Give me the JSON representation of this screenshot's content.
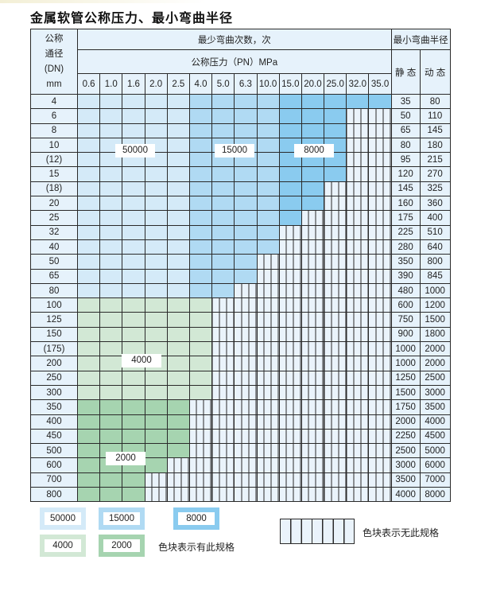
{
  "title": "金属软管公称压力、最小弯曲半径",
  "header": {
    "dn_label": [
      "公称",
      "通径",
      "(DN)",
      "mm"
    ],
    "cycles_label": "最少弯曲次数，次",
    "pressure_label": "公称压力（PN）MPa",
    "radius_label": "最小弯曲半径",
    "static_label": "静 态",
    "dynamic_label": "动 态",
    "pressures": [
      "0.6",
      "1.0",
      "1.6",
      "2.0",
      "2.5",
      "4.0",
      "5.0",
      "6.3",
      "10.0",
      "15.0",
      "20.0",
      "25.0",
      "32.0",
      "35.0"
    ]
  },
  "colors": {
    "50000": "#d4eaf8",
    "15000": "#b0daf3",
    "8000": "#8acbef",
    "4000": "#d2e8d5",
    "2000": "#a6d4b0",
    "border": "#2a2a2a",
    "header_bg": "#e6f2fb"
  },
  "rows": [
    {
      "dn": "4",
      "static": "35",
      "dynamic": "80",
      "cycles": [
        50000,
        50000,
        50000,
        50000,
        50000,
        15000,
        15000,
        15000,
        15000,
        8000,
        8000,
        8000,
        8000,
        8000
      ]
    },
    {
      "dn": "6",
      "static": "50",
      "dynamic": "110",
      "cycles": [
        50000,
        50000,
        50000,
        50000,
        50000,
        15000,
        15000,
        15000,
        15000,
        8000,
        8000,
        8000,
        null,
        null
      ]
    },
    {
      "dn": "8",
      "static": "65",
      "dynamic": "145",
      "cycles": [
        50000,
        50000,
        50000,
        50000,
        50000,
        15000,
        15000,
        15000,
        15000,
        8000,
        8000,
        8000,
        null,
        null
      ]
    },
    {
      "dn": "10",
      "static": "80",
      "dynamic": "180",
      "cycles": [
        50000,
        50000,
        50000,
        50000,
        50000,
        15000,
        15000,
        15000,
        15000,
        8000,
        8000,
        8000,
        null,
        null
      ]
    },
    {
      "dn": "(12)",
      "static": "95",
      "dynamic": "215",
      "cycles": [
        50000,
        50000,
        50000,
        50000,
        50000,
        15000,
        15000,
        15000,
        15000,
        8000,
        8000,
        8000,
        null,
        null
      ]
    },
    {
      "dn": "15",
      "static": "120",
      "dynamic": "270",
      "cycles": [
        50000,
        50000,
        50000,
        50000,
        50000,
        15000,
        15000,
        15000,
        15000,
        8000,
        8000,
        8000,
        null,
        null
      ]
    },
    {
      "dn": "(18)",
      "static": "145",
      "dynamic": "325",
      "cycles": [
        50000,
        50000,
        50000,
        50000,
        50000,
        15000,
        15000,
        15000,
        15000,
        8000,
        8000,
        null,
        null,
        null
      ]
    },
    {
      "dn": "20",
      "static": "160",
      "dynamic": "360",
      "cycles": [
        50000,
        50000,
        50000,
        50000,
        50000,
        15000,
        15000,
        15000,
        15000,
        8000,
        8000,
        null,
        null,
        null
      ]
    },
    {
      "dn": "25",
      "static": "175",
      "dynamic": "400",
      "cycles": [
        50000,
        50000,
        50000,
        50000,
        50000,
        15000,
        15000,
        15000,
        15000,
        8000,
        null,
        null,
        null,
        null
      ]
    },
    {
      "dn": "32",
      "static": "225",
      "dynamic": "510",
      "cycles": [
        50000,
        50000,
        50000,
        50000,
        50000,
        15000,
        15000,
        15000,
        15000,
        null,
        null,
        null,
        null,
        null
      ]
    },
    {
      "dn": "40",
      "static": "280",
      "dynamic": "640",
      "cycles": [
        50000,
        50000,
        50000,
        50000,
        50000,
        15000,
        15000,
        15000,
        15000,
        null,
        null,
        null,
        null,
        null
      ]
    },
    {
      "dn": "50",
      "static": "350",
      "dynamic": "800",
      "cycles": [
        50000,
        50000,
        50000,
        50000,
        50000,
        15000,
        15000,
        15000,
        null,
        null,
        null,
        null,
        null,
        null
      ]
    },
    {
      "dn": "65",
      "static": "390",
      "dynamic": "845",
      "cycles": [
        50000,
        50000,
        50000,
        50000,
        50000,
        15000,
        15000,
        15000,
        null,
        null,
        null,
        null,
        null,
        null
      ]
    },
    {
      "dn": "80",
      "static": "480",
      "dynamic": "1000",
      "cycles": [
        50000,
        50000,
        50000,
        50000,
        50000,
        15000,
        15000,
        null,
        null,
        null,
        null,
        null,
        null,
        null
      ]
    },
    {
      "dn": "100",
      "static": "600",
      "dynamic": "1200",
      "cycles": [
        4000,
        4000,
        4000,
        4000,
        4000,
        4000,
        null,
        null,
        null,
        null,
        null,
        null,
        null,
        null
      ]
    },
    {
      "dn": "125",
      "static": "750",
      "dynamic": "1500",
      "cycles": [
        4000,
        4000,
        4000,
        4000,
        4000,
        4000,
        null,
        null,
        null,
        null,
        null,
        null,
        null,
        null
      ]
    },
    {
      "dn": "150",
      "static": "900",
      "dynamic": "1800",
      "cycles": [
        4000,
        4000,
        4000,
        4000,
        4000,
        4000,
        null,
        null,
        null,
        null,
        null,
        null,
        null,
        null
      ]
    },
    {
      "dn": "(175)",
      "static": "1000",
      "dynamic": "2000",
      "cycles": [
        4000,
        4000,
        4000,
        4000,
        4000,
        4000,
        null,
        null,
        null,
        null,
        null,
        null,
        null,
        null
      ]
    },
    {
      "dn": "200",
      "static": "1000",
      "dynamic": "2000",
      "cycles": [
        4000,
        4000,
        4000,
        4000,
        4000,
        4000,
        null,
        null,
        null,
        null,
        null,
        null,
        null,
        null
      ]
    },
    {
      "dn": "250",
      "static": "1250",
      "dynamic": "2500",
      "cycles": [
        4000,
        4000,
        4000,
        4000,
        4000,
        4000,
        null,
        null,
        null,
        null,
        null,
        null,
        null,
        null
      ]
    },
    {
      "dn": "300",
      "static": "1500",
      "dynamic": "3000",
      "cycles": [
        4000,
        4000,
        4000,
        4000,
        4000,
        4000,
        null,
        null,
        null,
        null,
        null,
        null,
        null,
        null
      ]
    },
    {
      "dn": "350",
      "static": "1750",
      "dynamic": "3500",
      "cycles": [
        2000,
        2000,
        2000,
        2000,
        2000,
        null,
        null,
        null,
        null,
        null,
        null,
        null,
        null,
        null
      ]
    },
    {
      "dn": "400",
      "static": "2000",
      "dynamic": "4000",
      "cycles": [
        2000,
        2000,
        2000,
        2000,
        2000,
        null,
        null,
        null,
        null,
        null,
        null,
        null,
        null,
        null
      ]
    },
    {
      "dn": "450",
      "static": "2250",
      "dynamic": "4500",
      "cycles": [
        2000,
        2000,
        2000,
        2000,
        2000,
        null,
        null,
        null,
        null,
        null,
        null,
        null,
        null,
        null
      ]
    },
    {
      "dn": "500",
      "static": "2500",
      "dynamic": "5000",
      "cycles": [
        2000,
        2000,
        2000,
        2000,
        2000,
        null,
        null,
        null,
        null,
        null,
        null,
        null,
        null,
        null
      ]
    },
    {
      "dn": "600",
      "static": "3000",
      "dynamic": "6000",
      "cycles": [
        2000,
        2000,
        2000,
        2000,
        null,
        null,
        null,
        null,
        null,
        null,
        null,
        null,
        null,
        null
      ]
    },
    {
      "dn": "700",
      "static": "3500",
      "dynamic": "7000",
      "cycles": [
        2000,
        2000,
        2000,
        null,
        null,
        null,
        null,
        null,
        null,
        null,
        null,
        null,
        null,
        null
      ]
    },
    {
      "dn": "800",
      "static": "4000",
      "dynamic": "8000",
      "cycles": [
        2000,
        2000,
        2000,
        null,
        null,
        null,
        null,
        null,
        null,
        null,
        null,
        null,
        null,
        null
      ]
    }
  ],
  "region_labels": [
    "50000",
    "15000",
    "8000",
    "4000",
    "2000"
  ],
  "legend": {
    "items": [
      "50000",
      "15000",
      "8000",
      "4000",
      "2000"
    ],
    "available_text": "色块表示有此规格",
    "unavailable_text": "色块表示无此规格"
  }
}
